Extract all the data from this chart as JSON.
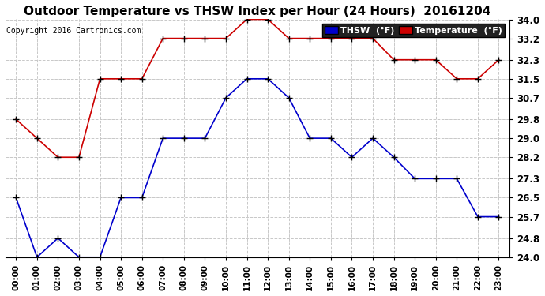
{
  "title": "Outdoor Temperature vs THSW Index per Hour (24 Hours)  20161204",
  "copyright": "Copyright 2016 Cartronics.com",
  "hours": [
    "00:00",
    "01:00",
    "02:00",
    "03:00",
    "04:00",
    "05:00",
    "06:00",
    "07:00",
    "08:00",
    "09:00",
    "10:00",
    "11:00",
    "12:00",
    "13:00",
    "14:00",
    "15:00",
    "16:00",
    "17:00",
    "18:00",
    "19:00",
    "20:00",
    "21:00",
    "22:00",
    "23:00"
  ],
  "thsw": [
    26.5,
    24.0,
    24.8,
    24.0,
    24.0,
    26.5,
    26.5,
    29.0,
    29.0,
    29.0,
    30.7,
    31.5,
    31.5,
    30.7,
    29.0,
    29.0,
    28.2,
    29.0,
    28.2,
    27.3,
    27.3,
    27.3,
    25.7,
    25.7
  ],
  "temp": [
    29.8,
    29.0,
    28.2,
    28.2,
    31.5,
    31.5,
    31.5,
    33.2,
    33.2,
    33.2,
    33.2,
    34.0,
    34.0,
    33.2,
    33.2,
    33.2,
    33.2,
    33.2,
    32.3,
    32.3,
    32.3,
    31.5,
    31.5,
    32.3
  ],
  "ylim": [
    24.0,
    34.0
  ],
  "yticks": [
    24.0,
    24.8,
    25.7,
    26.5,
    27.3,
    28.2,
    29.0,
    29.8,
    30.7,
    31.5,
    32.3,
    33.2,
    34.0
  ],
  "thsw_color": "#0000cc",
  "temp_color": "#cc0000",
  "bg_color": "#ffffff",
  "grid_color": "#c8c8c8",
  "title_fontsize": 11,
  "legend_thsw_bg": "#0000cc",
  "legend_temp_bg": "#cc0000",
  "legend_thsw_label": "THSW  (°F)",
  "legend_temp_label": "Temperature  (°F)"
}
